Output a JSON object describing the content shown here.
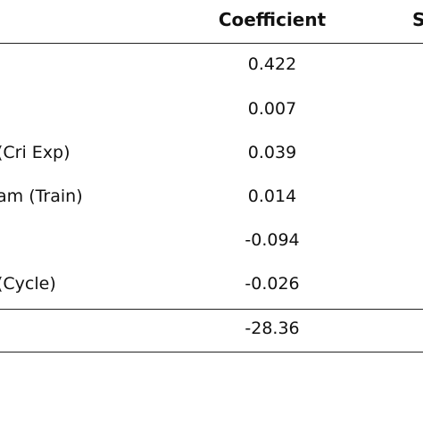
{
  "table": {
    "header": {
      "coefficient": "Coefficient",
      "next_column_partial": "S"
    },
    "rows": [
      {
        "variable": "",
        "coefficient": "0.422"
      },
      {
        "variable": "",
        "coefficient": "0.007"
      },
      {
        "variable": "(Cri Exp)",
        "coefficient": "0.039"
      },
      {
        "variable": "am (Train)",
        "coefficient": "0.014"
      },
      {
        "variable": "",
        "coefficient": "-0.094"
      },
      {
        "variable": "(Cycle)",
        "coefficient": "-0.026"
      }
    ],
    "footer": {
      "variable": "",
      "coefficient": "-28.36"
    }
  }
}
